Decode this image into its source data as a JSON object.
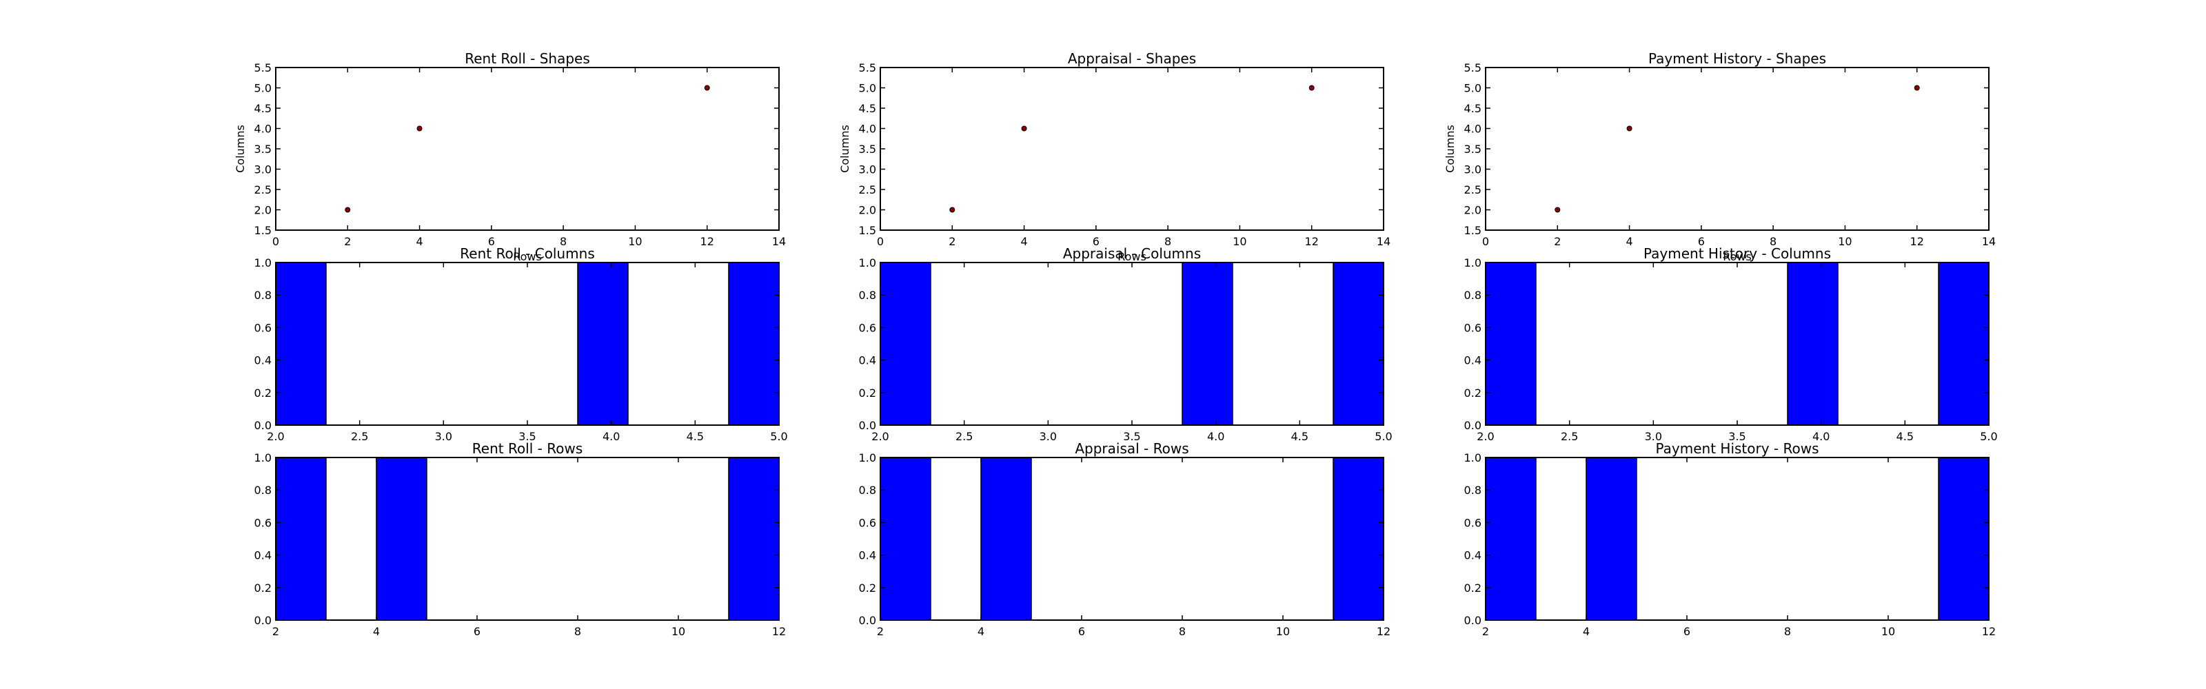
{
  "colors": {
    "bar": "#0000ff",
    "point_fill": "#8b0000",
    "edge": "#000000"
  },
  "chart_data": [
    {
      "type": "scatter",
      "title": "Rent Roll - Shapes",
      "xlabel": "Rows",
      "ylabel": "Columns",
      "xlim": [
        0,
        14
      ],
      "ylim": [
        1.5,
        5.5
      ],
      "xticks": [
        "0",
        "2",
        "4",
        "6",
        "8",
        "10",
        "12",
        "14"
      ],
      "yticks": [
        "1.5",
        "2.0",
        "2.5",
        "3.0",
        "3.5",
        "4.0",
        "4.5",
        "5.0",
        "5.5"
      ],
      "points": [
        {
          "x": 2,
          "y": 2
        },
        {
          "x": 4,
          "y": 4
        },
        {
          "x": 12,
          "y": 5
        }
      ]
    },
    {
      "type": "scatter",
      "title": "Appraisal - Shapes",
      "xlabel": "Rows",
      "ylabel": "Columns",
      "xlim": [
        0,
        14
      ],
      "ylim": [
        1.5,
        5.5
      ],
      "xticks": [
        "0",
        "2",
        "4",
        "6",
        "8",
        "10",
        "12",
        "14"
      ],
      "yticks": [
        "1.5",
        "2.0",
        "2.5",
        "3.0",
        "3.5",
        "4.0",
        "4.5",
        "5.0",
        "5.5"
      ],
      "points": [
        {
          "x": 2,
          "y": 2
        },
        {
          "x": 4,
          "y": 4
        },
        {
          "x": 12,
          "y": 5
        }
      ]
    },
    {
      "type": "scatter",
      "title": "Payment History - Shapes",
      "xlabel": "Rows",
      "ylabel": "Columns",
      "xlim": [
        0,
        14
      ],
      "ylim": [
        1.5,
        5.5
      ],
      "xticks": [
        "0",
        "2",
        "4",
        "6",
        "8",
        "10",
        "12",
        "14"
      ],
      "yticks": [
        "1.5",
        "2.0",
        "2.5",
        "3.0",
        "3.5",
        "4.0",
        "4.5",
        "5.0",
        "5.5"
      ],
      "points": [
        {
          "x": 2,
          "y": 2
        },
        {
          "x": 4,
          "y": 4
        },
        {
          "x": 12,
          "y": 5
        }
      ]
    },
    {
      "type": "bar",
      "title": "Rent Roll - Columns",
      "xlim": [
        2,
        5
      ],
      "ylim": [
        0,
        1
      ],
      "xticks": [
        "2.0",
        "2.5",
        "3.0",
        "3.5",
        "4.0",
        "4.5",
        "5.0"
      ],
      "yticks": [
        "0.0",
        "0.2",
        "0.4",
        "0.6",
        "0.8",
        "1.0"
      ],
      "bars": [
        {
          "x0": 2.0,
          "x1": 2.3,
          "value": 1
        },
        {
          "x0": 3.8,
          "x1": 4.1,
          "value": 1
        },
        {
          "x0": 4.7,
          "x1": 5.0,
          "value": 1
        }
      ]
    },
    {
      "type": "bar",
      "title": "Appraisal - Columns",
      "xlim": [
        2,
        5
      ],
      "ylim": [
        0,
        1
      ],
      "xticks": [
        "2.0",
        "2.5",
        "3.0",
        "3.5",
        "4.0",
        "4.5",
        "5.0"
      ],
      "yticks": [
        "0.0",
        "0.2",
        "0.4",
        "0.6",
        "0.8",
        "1.0"
      ],
      "bars": [
        {
          "x0": 2.0,
          "x1": 2.3,
          "value": 1
        },
        {
          "x0": 3.8,
          "x1": 4.1,
          "value": 1
        },
        {
          "x0": 4.7,
          "x1": 5.0,
          "value": 1
        }
      ]
    },
    {
      "type": "bar",
      "title": "Payment History - Columns",
      "xlim": [
        2,
        5
      ],
      "ylim": [
        0,
        1
      ],
      "xticks": [
        "2.0",
        "2.5",
        "3.0",
        "3.5",
        "4.0",
        "4.5",
        "5.0"
      ],
      "yticks": [
        "0.0",
        "0.2",
        "0.4",
        "0.6",
        "0.8",
        "1.0"
      ],
      "bars": [
        {
          "x0": 2.0,
          "x1": 2.3,
          "value": 1
        },
        {
          "x0": 3.8,
          "x1": 4.1,
          "value": 1
        },
        {
          "x0": 4.7,
          "x1": 5.0,
          "value": 1
        }
      ]
    },
    {
      "type": "bar",
      "title": "Rent Roll - Rows",
      "xlim": [
        2,
        12
      ],
      "ylim": [
        0,
        1
      ],
      "xticks": [
        "2",
        "4",
        "6",
        "8",
        "10",
        "12"
      ],
      "yticks": [
        "0.0",
        "0.2",
        "0.4",
        "0.6",
        "0.8",
        "1.0"
      ],
      "bars": [
        {
          "x0": 2,
          "x1": 3,
          "value": 1
        },
        {
          "x0": 4,
          "x1": 5,
          "value": 1
        },
        {
          "x0": 11,
          "x1": 12,
          "value": 1
        }
      ]
    },
    {
      "type": "bar",
      "title": "Appraisal - Rows",
      "xlim": [
        2,
        12
      ],
      "ylim": [
        0,
        1
      ],
      "xticks": [
        "2",
        "4",
        "6",
        "8",
        "10",
        "12"
      ],
      "yticks": [
        "0.0",
        "0.2",
        "0.4",
        "0.6",
        "0.8",
        "1.0"
      ],
      "bars": [
        {
          "x0": 2,
          "x1": 3,
          "value": 1
        },
        {
          "x0": 4,
          "x1": 5,
          "value": 1
        },
        {
          "x0": 11,
          "x1": 12,
          "value": 1
        }
      ]
    },
    {
      "type": "bar",
      "title": "Payment History - Rows",
      "xlim": [
        2,
        12
      ],
      "ylim": [
        0,
        1
      ],
      "xticks": [
        "2",
        "4",
        "6",
        "8",
        "10",
        "12"
      ],
      "yticks": [
        "0.0",
        "0.2",
        "0.4",
        "0.6",
        "0.8",
        "1.0"
      ],
      "bars": [
        {
          "x0": 2,
          "x1": 3,
          "value": 1
        },
        {
          "x0": 4,
          "x1": 5,
          "value": 1
        },
        {
          "x0": 11,
          "x1": 12,
          "value": 1
        }
      ]
    }
  ]
}
